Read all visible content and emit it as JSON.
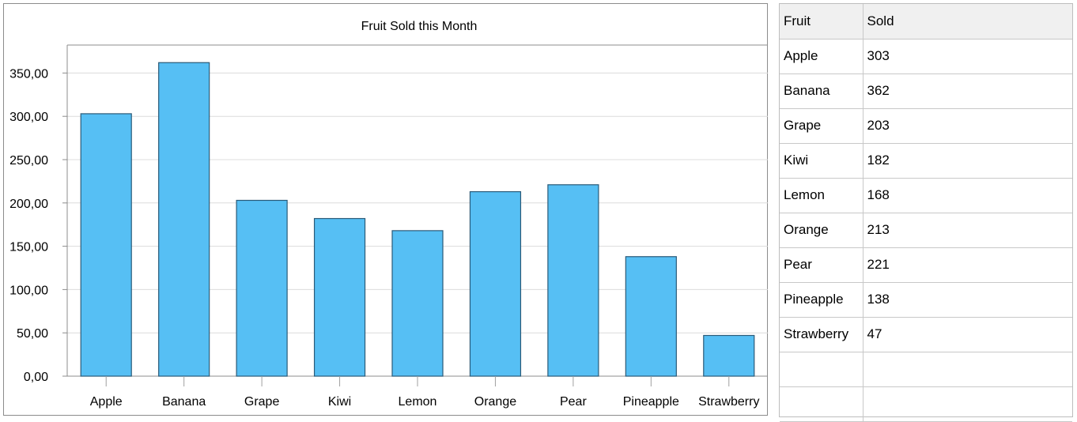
{
  "chart_data": {
    "type": "bar",
    "title": "Fruit Sold this Month",
    "categories": [
      "Apple",
      "Banana",
      "Grape",
      "Kiwi",
      "Lemon",
      "Orange",
      "Pear",
      "Pineapple",
      "Strawberry"
    ],
    "values": [
      303,
      362,
      203,
      182,
      168,
      213,
      221,
      138,
      47
    ],
    "ylim": [
      0,
      380
    ],
    "yticks": [
      0,
      50,
      100,
      150,
      200,
      250,
      300,
      350
    ],
    "ytick_labels": [
      "0,00",
      "50,00",
      "100,00",
      "150,00",
      "200,00",
      "250,00",
      "300,00",
      "350,00"
    ],
    "grid": true,
    "bar_color": "#56bff4",
    "bar_edge_color": "#2a5a78"
  },
  "grid": {
    "headers": [
      "Fruit",
      "Sold"
    ],
    "rows": [
      [
        "Apple",
        "303"
      ],
      [
        "Banana",
        "362"
      ],
      [
        "Grape",
        "203"
      ],
      [
        "Kiwi",
        "182"
      ],
      [
        "Lemon",
        "168"
      ],
      [
        "Orange",
        "213"
      ],
      [
        "Pear",
        "221"
      ],
      [
        "Pineapple",
        "138"
      ],
      [
        "Strawberry",
        "47"
      ],
      [
        "",
        ""
      ],
      [
        "",
        ""
      ]
    ]
  }
}
